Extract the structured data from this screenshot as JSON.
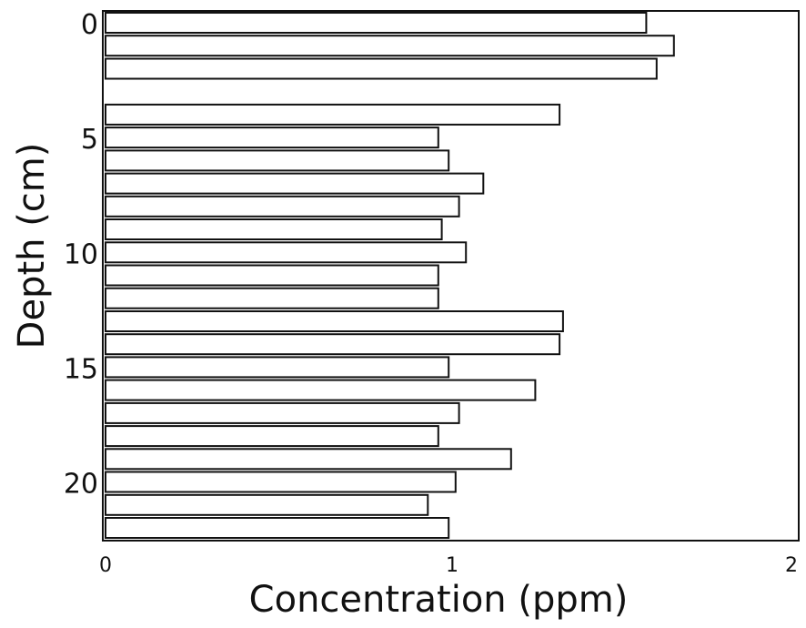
{
  "chart_data": {
    "type": "bar",
    "orientation": "horizontal",
    "xlabel": "Concentration (ppm)",
    "ylabel": "Depth (cm)",
    "xlim": [
      0,
      2
    ],
    "ylim": [
      0,
      22
    ],
    "x_ticks": [
      "0",
      "1",
      "2"
    ],
    "y_ticks": [
      "0",
      "5",
      "10",
      "15",
      "20"
    ],
    "y_tick_values": [
      0,
      5,
      10,
      15,
      20
    ],
    "bar_color": "#ffffff",
    "edge_color": "#111111",
    "grid": false,
    "legend": "none",
    "depths": [
      0,
      1,
      2,
      4,
      5,
      6,
      7,
      8,
      9,
      10,
      11,
      12,
      13,
      14,
      15,
      16,
      17,
      18,
      19,
      20,
      21,
      22
    ],
    "values": [
      1.56,
      1.64,
      1.59,
      1.31,
      0.96,
      0.99,
      1.09,
      1.02,
      0.97,
      1.04,
      0.96,
      0.96,
      1.32,
      1.31,
      0.99,
      1.24,
      1.02,
      0.96,
      1.17,
      1.01,
      0.93,
      0.99
    ]
  }
}
